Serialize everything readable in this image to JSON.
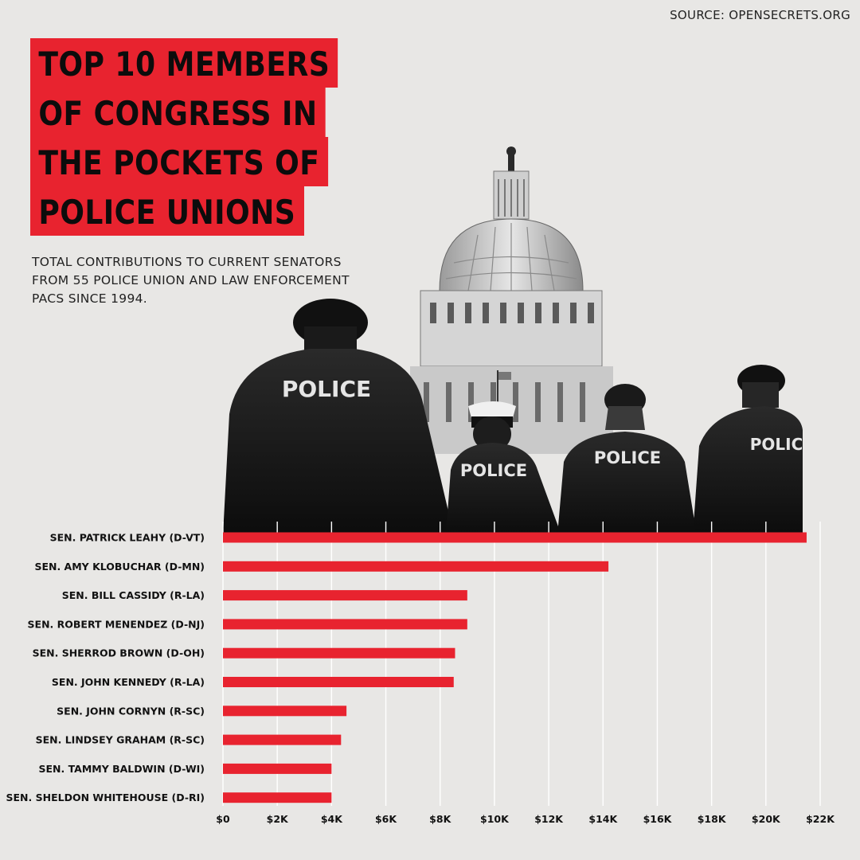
{
  "source": "SOURCE: OPENSECRETS.ORG",
  "title_lines": [
    "TOP 10 MEMBERS",
    "OF CONGRESS IN",
    "THE POCKETS OF",
    "POLICE UNIONS"
  ],
  "subtitle_lines": [
    "TOTAL CONTRIBUTIONS TO CURRENT SENATORS",
    "FROM 55 POLICE UNION AND LAW ENFORCEMENT",
    "PACS SINCE 1994."
  ],
  "illustration": {
    "vest_text": "POLICE",
    "partial_vest_text": "POLIC",
    "subject": "police-officers-and-capitol-dome"
  },
  "colors": {
    "bar": "#e8232f",
    "title_bg": "#e8232f",
    "background": "#e8e7e5"
  },
  "chart_data": {
    "type": "bar",
    "orientation": "horizontal",
    "categories": [
      "SEN. PATRICK LEAHY (D-VT)",
      "SEN. AMY KLOBUCHAR (D-MN)",
      "SEN. BILL CASSIDY (R-LA)",
      "SEN. ROBERT MENENDEZ (D-NJ)",
      "SEN. SHERROD BROWN (D-OH)",
      "SEN. JOHN KENNEDY (R-LA)",
      "SEN. JOHN CORNYN (R-SC)",
      "SEN. LINDSEY GRAHAM (R-SC)",
      "SEN. TAMMY BALDWIN (D-WI)",
      "SEN. SHELDON WHITEHOUSE (D-RI)"
    ],
    "values": [
      21500,
      14200,
      9000,
      9000,
      8550,
      8500,
      4550,
      4350,
      4000,
      4000
    ],
    "xlim": [
      0,
      22000
    ],
    "xticks": [
      0,
      2000,
      4000,
      6000,
      8000,
      10000,
      12000,
      14000,
      16000,
      18000,
      20000,
      22000
    ],
    "xtick_labels": [
      "$0",
      "$2K",
      "$4K",
      "$6K",
      "$8K",
      "$10K",
      "$12K",
      "$14K",
      "$16K",
      "$18K",
      "$20K",
      "$22K"
    ],
    "grid": "vertical",
    "title": "TOP 10 MEMBERS OF CONGRESS IN THE POCKETS OF POLICE UNIONS",
    "xlabel": "",
    "ylabel": ""
  }
}
